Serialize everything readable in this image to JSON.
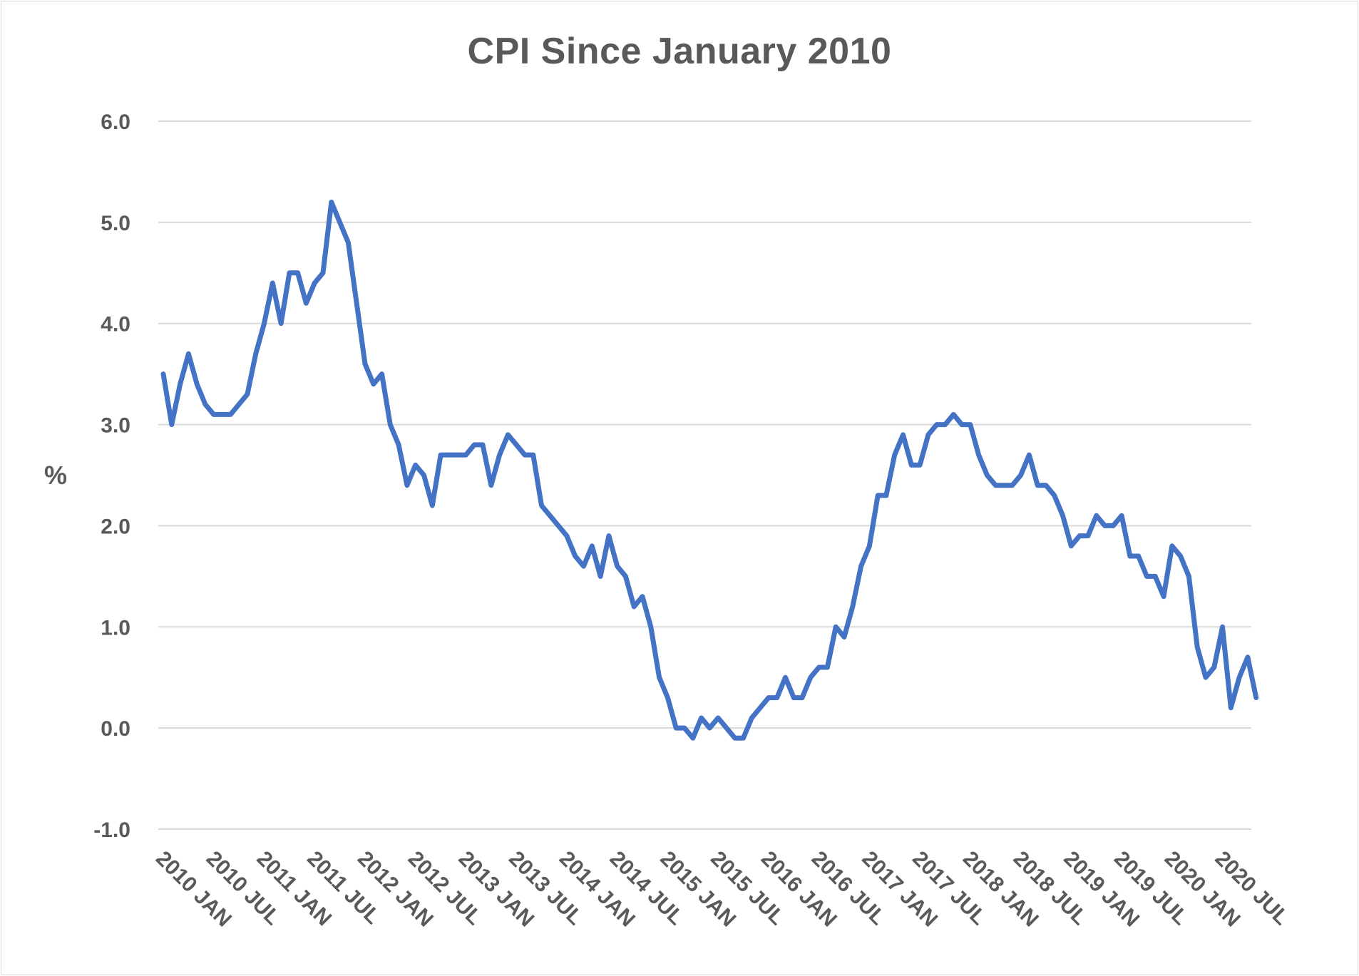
{
  "chart_data": {
    "type": "line",
    "title": "CPI Since January 2010",
    "xlabel": "",
    "ylabel": "%",
    "ylim": [
      -1.0,
      6.0
    ],
    "yticks": [
      "6.0",
      "5.0",
      "4.0",
      "3.0",
      "2.0",
      "1.0",
      "0.0",
      "-1.0"
    ],
    "ytick_values": [
      6,
      5,
      4,
      3,
      2,
      1,
      0,
      -1
    ],
    "xtick_labels": [
      "2010 JAN",
      "2010 JUL",
      "2011 JAN",
      "2011 JUL",
      "2012 JAN",
      "2012 JUL",
      "2013 JAN",
      "2013 JUL",
      "2014 JAN",
      "2014 JUL",
      "2015 JAN",
      "2015 JUL",
      "2016 JAN",
      "2016 JUL",
      "2017 JAN",
      "2017 JUL",
      "2018 JAN",
      "2018 JUL",
      "2019 JAN",
      "2019 JUL",
      "2020 JAN",
      "2020 JUL"
    ],
    "grid": true,
    "legend": "none",
    "line_color": "#4472c4",
    "grid_color": "#d9d9d9",
    "series": [
      {
        "values": [
          3.5,
          3.0,
          3.4,
          3.7,
          3.4,
          3.2,
          3.1,
          3.1,
          3.1,
          3.2,
          3.3,
          3.7,
          4.0,
          4.4,
          4.0,
          4.5,
          4.5,
          4.2,
          4.4,
          4.5,
          5.2,
          5.0,
          4.8,
          4.2,
          3.6,
          3.4,
          3.5,
          3.0,
          2.8,
          2.4,
          2.6,
          2.5,
          2.2,
          2.7,
          2.7,
          2.7,
          2.7,
          2.8,
          2.8,
          2.4,
          2.7,
          2.9,
          2.8,
          2.7,
          2.7,
          2.2,
          2.1,
          2.0,
          1.9,
          1.7,
          1.6,
          1.8,
          1.5,
          1.9,
          1.6,
          1.5,
          1.2,
          1.3,
          1.0,
          0.5,
          0.3,
          0.0,
          0.0,
          -0.1,
          0.1,
          0.0,
          0.1,
          0.0,
          -0.1,
          -0.1,
          0.1,
          0.2,
          0.3,
          0.3,
          0.5,
          0.3,
          0.3,
          0.5,
          0.6,
          0.6,
          1.0,
          0.9,
          1.2,
          1.6,
          1.8,
          2.3,
          2.3,
          2.7,
          2.9,
          2.6,
          2.6,
          2.9,
          3.0,
          3.0,
          3.1,
          3.0,
          3.0,
          2.7,
          2.5,
          2.4,
          2.4,
          2.4,
          2.5,
          2.7,
          2.4,
          2.4,
          2.3,
          2.1,
          1.8,
          1.9,
          1.9,
          2.1,
          2.0,
          2.0,
          2.1,
          1.7,
          1.7,
          1.5,
          1.5,
          1.3,
          1.8,
          1.7,
          1.5,
          0.8,
          0.5,
          0.6,
          1.0,
          0.2,
          0.5,
          0.7,
          0.3
        ]
      }
    ]
  }
}
